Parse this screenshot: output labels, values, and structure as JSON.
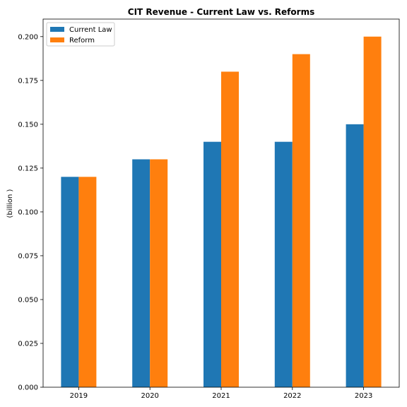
{
  "chart_data": {
    "type": "bar",
    "title": "CIT Revenue - Current Law vs. Reforms",
    "xlabel": "",
    "ylabel": "(billion )",
    "categories": [
      "2019",
      "2020",
      "2021",
      "2022",
      "2023"
    ],
    "series": [
      {
        "name": "Current Law",
        "color": "#1f77b4",
        "values": [
          0.12,
          0.13,
          0.14,
          0.14,
          0.15
        ]
      },
      {
        "name": "Reform",
        "color": "#ff7f0e",
        "values": [
          0.12,
          0.13,
          0.18,
          0.19,
          0.2
        ]
      }
    ],
    "ylim": [
      0,
      0.21
    ],
    "yticks": [
      "0.000",
      "0.025",
      "0.050",
      "0.075",
      "0.100",
      "0.125",
      "0.150",
      "0.175",
      "0.200"
    ],
    "grid": false,
    "legend_position": "top-left"
  }
}
